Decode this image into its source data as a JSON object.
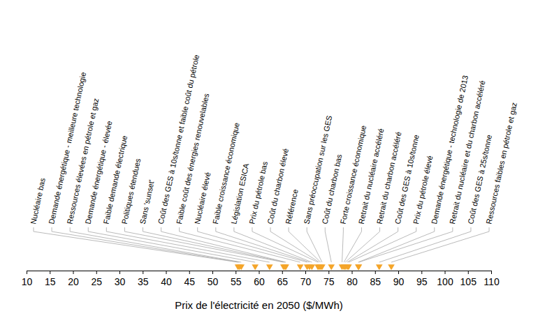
{
  "chart_data": {
    "type": "scatter",
    "xlabel": "Prix de l'électricité en 2050 ($/MWh)",
    "categories": [
      "Nucléaire bas",
      "Demande énergétique - meilleure technologie",
      "Ressources élevées en pétrole et gaz",
      "Demande énergétique - élevée",
      "Faible demande électrique",
      "Politiques étendues",
      "Sans 'sunset'",
      "Coût des GES à 10s/tonne et faible coût du pétrole",
      "Faible coût des énergies renouvelables",
      "Nucléaire élevé",
      "Faible croissance économique",
      "Législation ESICA",
      "Prix du pétrole bas",
      "Coût du charbon élevé",
      "Référence",
      "Sans préoccupation sur les GES",
      "Coût du charbon bas",
      "Forte croissance économique",
      "Retrait du nucléaire accéléré",
      "Retrait du charbon accéléré",
      "Coût des GES à 10s/tonne",
      "Prix du pétrole élevé",
      "Demande énergétique - technologie  de 2013",
      "Retrait du nucléaire et du charbon accéléré",
      "Coût des GES à 25s/tonne",
      "Ressources faibles en pétrole et gaz"
    ],
    "values": [
      55.5,
      55.8,
      56.2,
      59.2,
      62.3,
      65.3,
      65.6,
      65.8,
      68.9,
      70.4,
      70.9,
      71.4,
      72.7,
      73.0,
      73.3,
      73.6,
      75.6,
      77.9,
      78.3,
      78.6,
      79.0,
      79.3,
      81.4,
      81.5,
      85.9,
      88.5
    ],
    "color": "#f4a52a",
    "marker": "triangle-down",
    "xlim": [
      10,
      110
    ],
    "xticks": [
      10,
      15,
      20,
      25,
      30,
      35,
      40,
      45,
      50,
      55,
      60,
      65,
      70,
      75,
      80,
      85,
      90,
      95,
      100,
      105,
      110
    ]
  }
}
